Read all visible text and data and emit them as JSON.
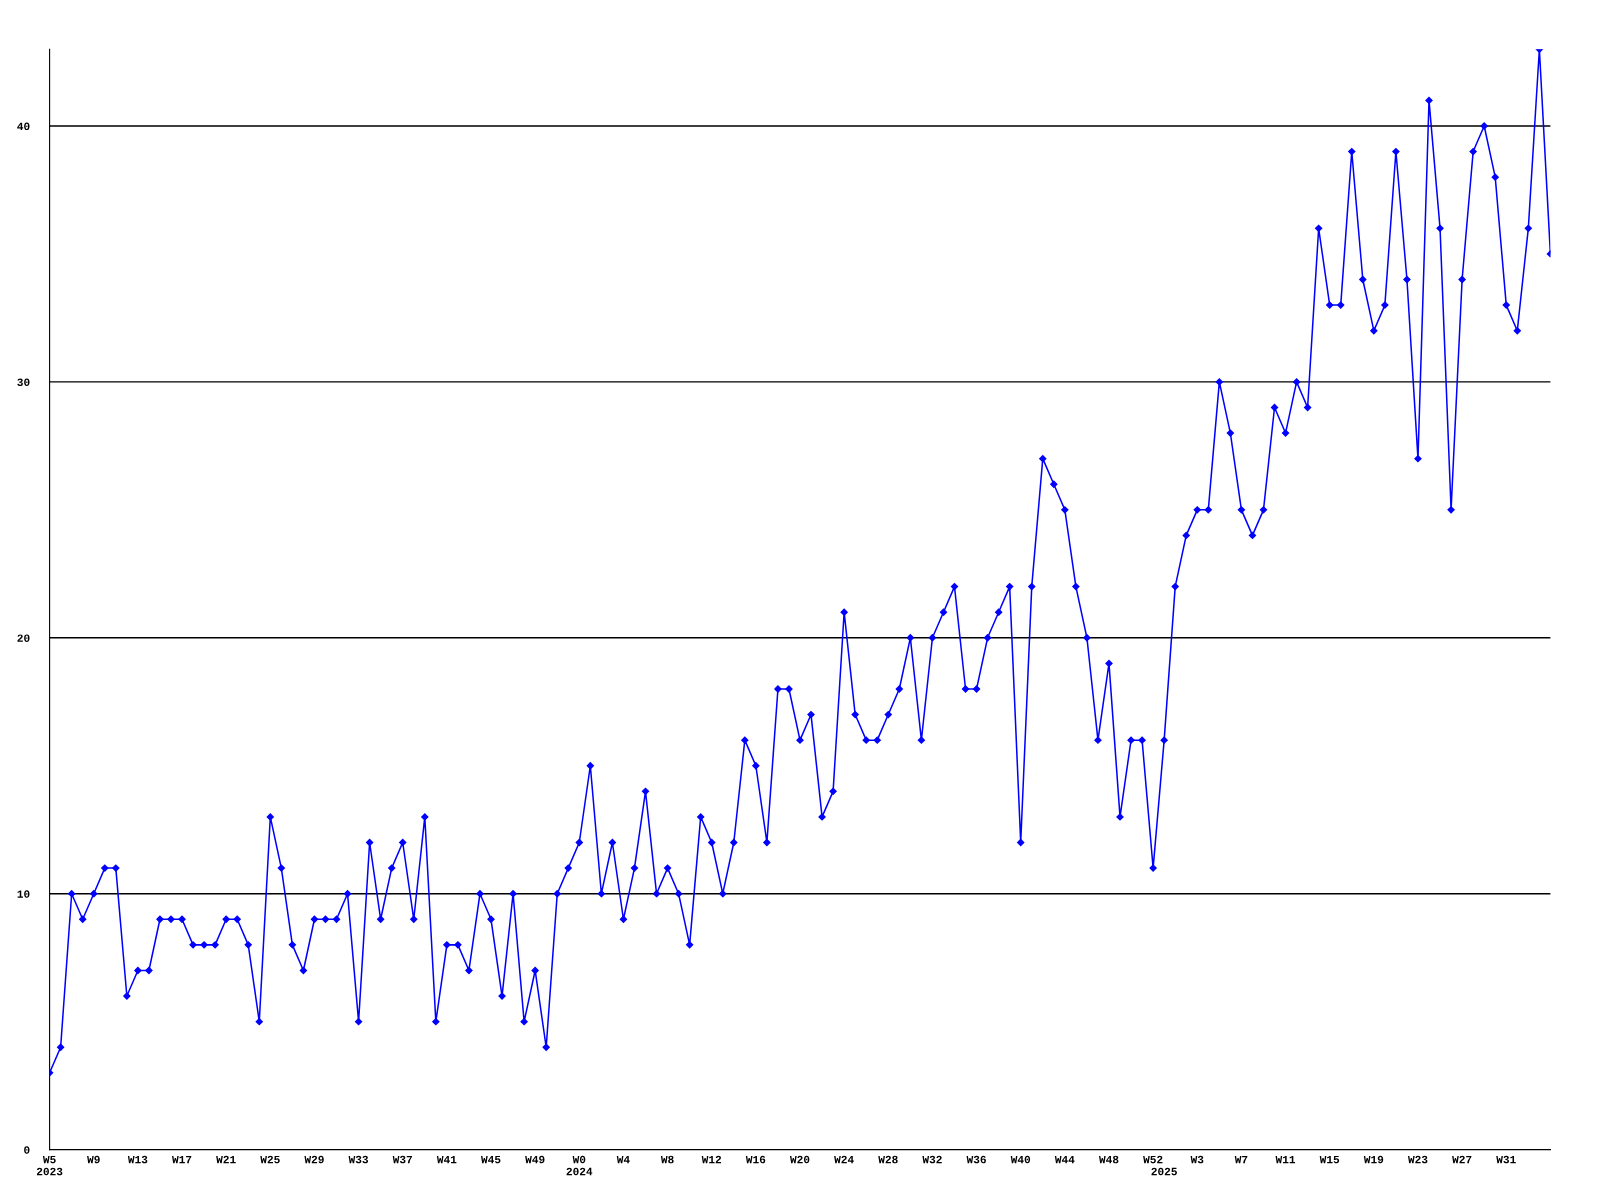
{
  "chart_data": {
    "type": "line",
    "categories": [
      "W5\n2023",
      null,
      null,
      null,
      "W9",
      null,
      null,
      null,
      "W13",
      null,
      null,
      null,
      "W17",
      null,
      null,
      null,
      "W21",
      null,
      null,
      null,
      "W25",
      null,
      null,
      null,
      "W29",
      null,
      null,
      null,
      "W33",
      null,
      null,
      null,
      "W37",
      null,
      null,
      null,
      "W41",
      null,
      null,
      null,
      "W45",
      null,
      null,
      null,
      "W49",
      null,
      null,
      null,
      "W0\n2024",
      null,
      null,
      null,
      "W4",
      null,
      null,
      null,
      "W8",
      null,
      null,
      null,
      "W12",
      null,
      null,
      null,
      "W16",
      null,
      null,
      null,
      "W20",
      null,
      null,
      null,
      "W24",
      null,
      null,
      null,
      "W28",
      null,
      null,
      null,
      "W32",
      null,
      null,
      null,
      "W36",
      null,
      null,
      null,
      "W40",
      null,
      null,
      null,
      "W44",
      null,
      null,
      null,
      "W48",
      null,
      null,
      null,
      "W52",
      "\n2025",
      null,
      null,
      "W3",
      null,
      null,
      null,
      "W7",
      null,
      null,
      null,
      "W11",
      null,
      null,
      null,
      "W15",
      null,
      null,
      null,
      "W19",
      null,
      null,
      null,
      "W23",
      null,
      null,
      null,
      "W27",
      null,
      null,
      null,
      "W31",
      null,
      null,
      null,
      null
    ],
    "series": [
      {
        "color": "#0000ff",
        "values": [
          3,
          4,
          10,
          9,
          10,
          11,
          11,
          6,
          7,
          7,
          9,
          9,
          9,
          8,
          8,
          8,
          9,
          9,
          8,
          5,
          13,
          11,
          8,
          7,
          9,
          9,
          9,
          10,
          5,
          12,
          9,
          11,
          12,
          9,
          13,
          5,
          8,
          8,
          7,
          10,
          9,
          6,
          10,
          5,
          7,
          4,
          10,
          11,
          12,
          15,
          10,
          12,
          9,
          11,
          14,
          10,
          11,
          10,
          8,
          13,
          12,
          10,
          12,
          16,
          15,
          12,
          18,
          18,
          16,
          17,
          13,
          14,
          21,
          17,
          16,
          16,
          17,
          18,
          20,
          16,
          20,
          21,
          22,
          18,
          18,
          20,
          21,
          22,
          12,
          22,
          27,
          26,
          25,
          22,
          20,
          16,
          19,
          13,
          16,
          16,
          11,
          16,
          22,
          24,
          25,
          25,
          30,
          28,
          25,
          24,
          25,
          29,
          28,
          30,
          29,
          36,
          33,
          33,
          39,
          34,
          32,
          33,
          39,
          34,
          27,
          41,
          36,
          25,
          34,
          39,
          40,
          38,
          33,
          32,
          36,
          43,
          35
        ]
      }
    ],
    "ylim": [
      0,
      43
    ],
    "yticks": [
      0,
      10,
      20,
      30,
      40
    ],
    "grid": "y",
    "marker": "diamond",
    "line_style": "solid",
    "legend": false
  }
}
